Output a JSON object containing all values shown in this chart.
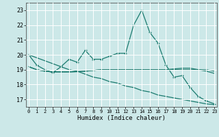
{
  "xlabel": "Humidex (Indice chaleur)",
  "x": [
    0,
    1,
    2,
    3,
    4,
    5,
    6,
    7,
    8,
    9,
    10,
    11,
    12,
    13,
    14,
    15,
    16,
    17,
    18,
    19,
    20,
    21,
    22,
    23
  ],
  "line1": [
    20.0,
    19.3,
    19.0,
    18.8,
    19.2,
    19.7,
    19.5,
    20.3,
    19.7,
    19.7,
    19.9,
    20.1,
    20.1,
    22.0,
    23.0,
    21.5,
    20.8,
    19.3,
    18.5,
    18.6,
    17.8,
    17.2,
    16.9,
    16.7
  ],
  "line2": [
    19.2,
    19.0,
    18.9,
    18.85,
    18.85,
    18.85,
    18.87,
    18.9,
    18.95,
    19.0,
    19.0,
    19.0,
    19.0,
    19.0,
    19.0,
    19.0,
    19.0,
    19.0,
    19.0,
    19.0,
    19.0,
    19.0,
    19.0,
    18.9
  ],
  "line3": [
    20.0,
    19.8,
    19.6,
    19.4,
    19.2,
    19.0,
    18.9,
    18.7,
    18.5,
    18.4,
    18.2,
    18.1,
    17.9,
    17.8,
    17.6,
    17.5,
    17.3,
    17.2,
    17.1,
    17.0,
    16.9,
    16.8,
    16.7,
    16.65
  ],
  "line4": [
    19.2,
    19.0,
    18.9,
    18.85,
    18.85,
    18.85,
    18.87,
    18.9,
    18.95,
    19.0,
    19.0,
    19.0,
    19.0,
    19.0,
    19.0,
    19.0,
    19.0,
    19.0,
    19.05,
    19.1,
    19.1,
    19.0,
    18.9,
    18.75
  ],
  "line_color": "#1a7a6e",
  "bg_color": "#cce8e8",
  "grid_color": "#b0d8d8",
  "ylim": [
    16.5,
    23.5
  ],
  "yticks": [
    17,
    18,
    19,
    20,
    21,
    22,
    23
  ],
  "xticks": [
    0,
    1,
    2,
    3,
    4,
    5,
    6,
    7,
    8,
    9,
    10,
    11,
    12,
    13,
    14,
    15,
    16,
    17,
    18,
    19,
    20,
    21,
    22,
    23
  ]
}
